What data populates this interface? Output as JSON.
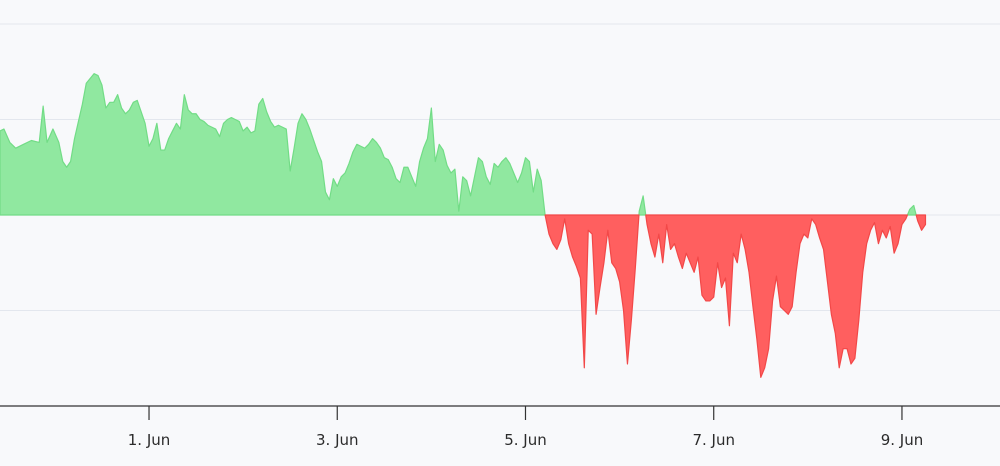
{
  "chart_data": {
    "type": "area",
    "title": "",
    "xlabel": "",
    "ylabel": "",
    "baseline": 0,
    "ylim": [
      -100,
      100
    ],
    "xlim": [
      "2024-05-30T10:00",
      "2024-06-10T01:00"
    ],
    "grid": "horizontal",
    "legend": "none",
    "colors": {
      "positive_fill": "#90e8a0",
      "positive_line": "#72dc86",
      "negative_fill": "#ff5f5f",
      "negative_line": "#f24848",
      "background": "#f8f9fb"
    },
    "x_ticks": [
      {
        "label": "1. Jun",
        "date": "2024-06-01"
      },
      {
        "label": "3. Jun",
        "date": "2024-06-03"
      },
      {
        "label": "5. Jun",
        "date": "2024-06-05"
      },
      {
        "label": "7. Jun",
        "date": "2024-06-07"
      },
      {
        "label": "9. Jun",
        "date": "2024-06-09"
      }
    ],
    "series": [
      {
        "points": [
          [
            "2024-05-30T10:00",
            44
          ],
          [
            "2024-05-30T11:00",
            45
          ],
          [
            "2024-05-30T12:30",
            38
          ],
          [
            "2024-05-30T14:00",
            35
          ],
          [
            "2024-05-30T16:00",
            37
          ],
          [
            "2024-05-30T18:00",
            39
          ],
          [
            "2024-05-30T20:00",
            38
          ],
          [
            "2024-05-30T21:00",
            57
          ],
          [
            "2024-05-30T22:00",
            38
          ],
          [
            "2024-05-30T23:30",
            45
          ],
          [
            "2024-05-31T01:00",
            38
          ],
          [
            "2024-05-31T02:00",
            28
          ],
          [
            "2024-05-31T03:00",
            25
          ],
          [
            "2024-05-31T04:00",
            28
          ],
          [
            "2024-05-31T05:00",
            40
          ],
          [
            "2024-05-31T07:00",
            58
          ],
          [
            "2024-05-31T08:00",
            69
          ],
          [
            "2024-05-31T10:00",
            74
          ],
          [
            "2024-05-31T11:00",
            73
          ],
          [
            "2024-05-31T12:00",
            68
          ],
          [
            "2024-05-31T13:00",
            56
          ],
          [
            "2024-05-31T14:00",
            59
          ],
          [
            "2024-05-31T15:00",
            59
          ],
          [
            "2024-05-31T16:00",
            63
          ],
          [
            "2024-05-31T17:00",
            56
          ],
          [
            "2024-05-31T18:00",
            53
          ],
          [
            "2024-05-31T19:00",
            55
          ],
          [
            "2024-05-31T20:00",
            59
          ],
          [
            "2024-05-31T21:00",
            60
          ],
          [
            "2024-05-31T22:00",
            54
          ],
          [
            "2024-05-31T23:00",
            48
          ],
          [
            "2024-06-01T00:00",
            36
          ],
          [
            "2024-06-01T01:00",
            40
          ],
          [
            "2024-06-01T02:00",
            48
          ],
          [
            "2024-06-01T03:00",
            34
          ],
          [
            "2024-06-01T04:00",
            34
          ],
          [
            "2024-06-01T05:00",
            40
          ],
          [
            "2024-06-01T06:00",
            44
          ],
          [
            "2024-06-01T07:00",
            48
          ],
          [
            "2024-06-01T08:00",
            45
          ],
          [
            "2024-06-01T09:00",
            63
          ],
          [
            "2024-06-01T10:00",
            55
          ],
          [
            "2024-06-01T11:00",
            53
          ],
          [
            "2024-06-01T12:00",
            53
          ],
          [
            "2024-06-01T13:00",
            50
          ],
          [
            "2024-06-01T14:00",
            49
          ],
          [
            "2024-06-01T15:00",
            47
          ],
          [
            "2024-06-01T16:00",
            46
          ],
          [
            "2024-06-01T17:00",
            45
          ],
          [
            "2024-06-01T18:00",
            41
          ],
          [
            "2024-06-01T19:00",
            48
          ],
          [
            "2024-06-01T20:00",
            50
          ],
          [
            "2024-06-01T21:00",
            51
          ],
          [
            "2024-06-01T22:00",
            50
          ],
          [
            "2024-06-01T23:00",
            49
          ],
          [
            "2024-06-02T00:00",
            44
          ],
          [
            "2024-06-02T01:00",
            46
          ],
          [
            "2024-06-02T02:00",
            43
          ],
          [
            "2024-06-02T03:00",
            44
          ],
          [
            "2024-06-02T04:00",
            58
          ],
          [
            "2024-06-02T05:00",
            61
          ],
          [
            "2024-06-02T06:00",
            54
          ],
          [
            "2024-06-02T07:00",
            49
          ],
          [
            "2024-06-02T08:00",
            46
          ],
          [
            "2024-06-02T09:00",
            47
          ],
          [
            "2024-06-02T10:00",
            46
          ],
          [
            "2024-06-02T11:00",
            45
          ],
          [
            "2024-06-02T12:00",
            23
          ],
          [
            "2024-06-02T13:00",
            35
          ],
          [
            "2024-06-02T14:00",
            48
          ],
          [
            "2024-06-02T15:00",
            53
          ],
          [
            "2024-06-02T16:00",
            50
          ],
          [
            "2024-06-02T17:00",
            45
          ],
          [
            "2024-06-02T18:00",
            39
          ],
          [
            "2024-06-02T19:00",
            33
          ],
          [
            "2024-06-02T20:00",
            28
          ],
          [
            "2024-06-02T21:00",
            12
          ],
          [
            "2024-06-02T22:00",
            8
          ],
          [
            "2024-06-02T23:00",
            19
          ],
          [
            "2024-06-03T00:00",
            15
          ],
          [
            "2024-06-03T01:00",
            20
          ],
          [
            "2024-06-03T02:00",
            22
          ],
          [
            "2024-06-03T03:00",
            27
          ],
          [
            "2024-06-03T04:00",
            33
          ],
          [
            "2024-06-03T05:00",
            37
          ],
          [
            "2024-06-03T06:00",
            36
          ],
          [
            "2024-06-03T07:00",
            35
          ],
          [
            "2024-06-03T08:00",
            37
          ],
          [
            "2024-06-03T09:00",
            40
          ],
          [
            "2024-06-03T10:00",
            38
          ],
          [
            "2024-06-03T11:00",
            35
          ],
          [
            "2024-06-03T12:00",
            30
          ],
          [
            "2024-06-03T13:00",
            29
          ],
          [
            "2024-06-03T14:00",
            25
          ],
          [
            "2024-06-03T15:00",
            19
          ],
          [
            "2024-06-03T16:00",
            17
          ],
          [
            "2024-06-03T17:00",
            25
          ],
          [
            "2024-06-03T18:00",
            25
          ],
          [
            "2024-06-03T19:00",
            20
          ],
          [
            "2024-06-03T20:00",
            15
          ],
          [
            "2024-06-03T21:00",
            28
          ],
          [
            "2024-06-03T22:00",
            35
          ],
          [
            "2024-06-03T23:00",
            40
          ],
          [
            "2024-06-04T00:00",
            56
          ],
          [
            "2024-06-04T01:00",
            28
          ],
          [
            "2024-06-04T02:00",
            37
          ],
          [
            "2024-06-04T03:00",
            34
          ],
          [
            "2024-06-04T04:00",
            26
          ],
          [
            "2024-06-04T05:00",
            22
          ],
          [
            "2024-06-04T06:00",
            24
          ],
          [
            "2024-06-04T07:00",
            2
          ],
          [
            "2024-06-04T08:00",
            20
          ],
          [
            "2024-06-04T09:00",
            18
          ],
          [
            "2024-06-04T10:00",
            10
          ],
          [
            "2024-06-04T11:00",
            20
          ],
          [
            "2024-06-04T12:00",
            30
          ],
          [
            "2024-06-04T13:00",
            28
          ],
          [
            "2024-06-04T14:00",
            20
          ],
          [
            "2024-06-04T15:00",
            16
          ],
          [
            "2024-06-04T16:00",
            27
          ],
          [
            "2024-06-04T17:00",
            25
          ],
          [
            "2024-06-04T18:00",
            28
          ],
          [
            "2024-06-04T19:00",
            30
          ],
          [
            "2024-06-04T20:00",
            27
          ],
          [
            "2024-06-04T21:00",
            22
          ],
          [
            "2024-06-04T22:00",
            17
          ],
          [
            "2024-06-04T23:00",
            22
          ],
          [
            "2024-06-05T00:00",
            30
          ],
          [
            "2024-06-05T01:00",
            28
          ],
          [
            "2024-06-05T02:00",
            12
          ],
          [
            "2024-06-05T03:00",
            24
          ],
          [
            "2024-06-05T04:00",
            18
          ],
          [
            "2024-06-05T05:00",
            0
          ],
          [
            "2024-06-05T06:00",
            -10
          ],
          [
            "2024-06-05T07:00",
            -15
          ],
          [
            "2024-06-05T08:00",
            -18
          ],
          [
            "2024-06-05T09:00",
            -13
          ],
          [
            "2024-06-05T10:00",
            -2
          ],
          [
            "2024-06-05T11:00",
            -15
          ],
          [
            "2024-06-05T12:00",
            -22
          ],
          [
            "2024-06-05T13:00",
            -27
          ],
          [
            "2024-06-05T14:00",
            -33
          ],
          [
            "2024-06-05T15:00",
            -80
          ],
          [
            "2024-06-05T16:00",
            -8
          ],
          [
            "2024-06-05T17:00",
            -10
          ],
          [
            "2024-06-05T18:00",
            -52
          ],
          [
            "2024-06-05T19:00",
            -38
          ],
          [
            "2024-06-05T20:00",
            -25
          ],
          [
            "2024-06-05T21:00",
            -8
          ],
          [
            "2024-06-05T22:00",
            -25
          ],
          [
            "2024-06-05T23:00",
            -28
          ],
          [
            "2024-06-06T00:00",
            -35
          ],
          [
            "2024-06-06T01:00",
            -50
          ],
          [
            "2024-06-06T02:00",
            -78
          ],
          [
            "2024-06-06T03:00",
            -55
          ],
          [
            "2024-06-06T04:00",
            -28
          ],
          [
            "2024-06-06T05:00",
            2
          ],
          [
            "2024-06-06T06:00",
            10
          ],
          [
            "2024-06-06T07:00",
            -5
          ],
          [
            "2024-06-06T08:00",
            -15
          ],
          [
            "2024-06-06T09:00",
            -22
          ],
          [
            "2024-06-06T10:00",
            -10
          ],
          [
            "2024-06-06T11:00",
            -25
          ],
          [
            "2024-06-06T12:00",
            -5
          ],
          [
            "2024-06-06T13:00",
            -18
          ],
          [
            "2024-06-06T14:00",
            -15
          ],
          [
            "2024-06-06T15:00",
            -22
          ],
          [
            "2024-06-06T16:00",
            -28
          ],
          [
            "2024-06-06T17:00",
            -20
          ],
          [
            "2024-06-06T18:00",
            -25
          ],
          [
            "2024-06-06T19:00",
            -30
          ],
          [
            "2024-06-06T20:00",
            -22
          ],
          [
            "2024-06-06T21:00",
            -42
          ],
          [
            "2024-06-06T22:00",
            -45
          ],
          [
            "2024-06-06T23:00",
            -45
          ],
          [
            "2024-06-07T00:00",
            -43
          ],
          [
            "2024-06-07T01:00",
            -25
          ],
          [
            "2024-06-07T02:00",
            -38
          ],
          [
            "2024-06-07T03:00",
            -33
          ],
          [
            "2024-06-07T04:00",
            -58
          ],
          [
            "2024-06-07T05:00",
            -20
          ],
          [
            "2024-06-07T06:00",
            -25
          ],
          [
            "2024-06-07T07:00",
            -10
          ],
          [
            "2024-06-07T08:00",
            -18
          ],
          [
            "2024-06-07T09:00",
            -30
          ],
          [
            "2024-06-07T10:00",
            -48
          ],
          [
            "2024-06-07T11:00",
            -65
          ],
          [
            "2024-06-07T12:00",
            -85
          ],
          [
            "2024-06-07T13:00",
            -80
          ],
          [
            "2024-06-07T14:00",
            -70
          ],
          [
            "2024-06-07T15:00",
            -45
          ],
          [
            "2024-06-07T16:00",
            -32
          ],
          [
            "2024-06-07T17:00",
            -48
          ],
          [
            "2024-06-07T18:00",
            -50
          ],
          [
            "2024-06-07T19:00",
            -52
          ],
          [
            "2024-06-07T20:00",
            -48
          ],
          [
            "2024-06-07T21:00",
            -30
          ],
          [
            "2024-06-07T22:00",
            -15
          ],
          [
            "2024-06-07T23:00",
            -10
          ],
          [
            "2024-06-08T00:00",
            -12
          ],
          [
            "2024-06-08T01:00",
            -2
          ],
          [
            "2024-06-08T02:00",
            -5
          ],
          [
            "2024-06-08T03:00",
            -12
          ],
          [
            "2024-06-08T04:00",
            -18
          ],
          [
            "2024-06-08T05:00",
            -35
          ],
          [
            "2024-06-08T06:00",
            -52
          ],
          [
            "2024-06-08T07:00",
            -62
          ],
          [
            "2024-06-08T08:00",
            -80
          ],
          [
            "2024-06-08T09:00",
            -70
          ],
          [
            "2024-06-08T10:00",
            -70
          ],
          [
            "2024-06-08T11:00",
            -78
          ],
          [
            "2024-06-08T12:00",
            -75
          ],
          [
            "2024-06-08T13:00",
            -55
          ],
          [
            "2024-06-08T14:00",
            -30
          ],
          [
            "2024-06-08T15:00",
            -15
          ],
          [
            "2024-06-08T16:00",
            -8
          ],
          [
            "2024-06-08T17:00",
            -4
          ],
          [
            "2024-06-08T18:00",
            -15
          ],
          [
            "2024-06-08T19:00",
            -8
          ],
          [
            "2024-06-08T20:00",
            -12
          ],
          [
            "2024-06-08T21:00",
            -6
          ],
          [
            "2024-06-08T22:00",
            -20
          ],
          [
            "2024-06-08T23:00",
            -15
          ],
          [
            "2024-06-09T00:00",
            -5
          ],
          [
            "2024-06-09T01:00",
            -2
          ],
          [
            "2024-06-09T02:00",
            3
          ],
          [
            "2024-06-09T03:00",
            5
          ],
          [
            "2024-06-09T04:00",
            -3
          ],
          [
            "2024-06-09T05:00",
            -8
          ],
          [
            "2024-06-09T06:00",
            -5
          ]
        ]
      }
    ]
  }
}
